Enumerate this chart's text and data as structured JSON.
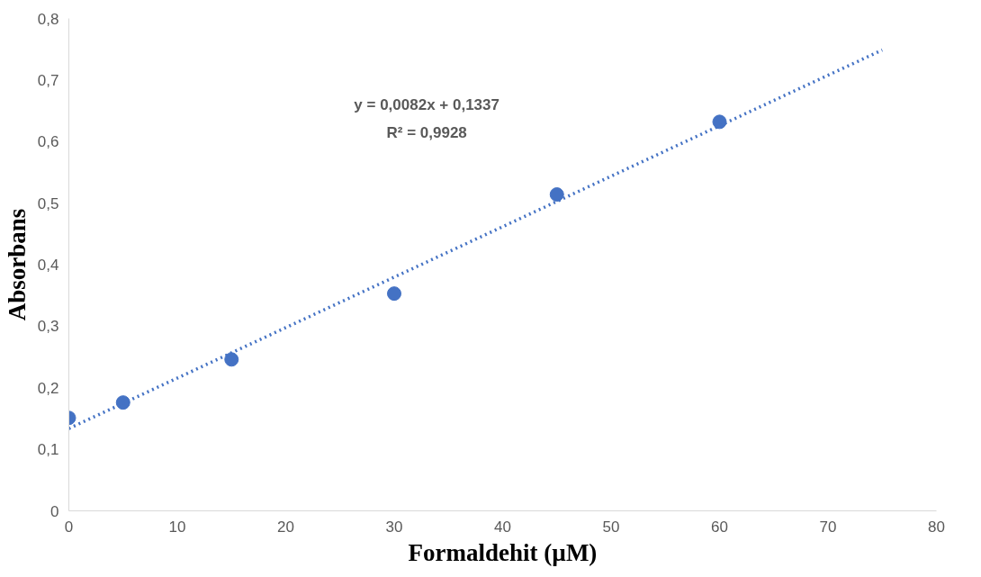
{
  "chart_data": {
    "type": "scatter",
    "xlabel": "Formaldehit (µM)",
    "ylabel": "Absorbans",
    "annotations": [
      "y = 0,0082x + 0,1337",
      "R² = 0,9928"
    ],
    "xlim": [
      0,
      80
    ],
    "xticks": [
      0,
      10,
      20,
      30,
      40,
      50,
      60,
      70,
      80
    ],
    "ylim": [
      0,
      0.8
    ],
    "yticks": [
      {
        "value": 0,
        "label": "0"
      },
      {
        "value": 0.1,
        "label": "0,1"
      },
      {
        "value": 0.2,
        "label": "0,2"
      },
      {
        "value": 0.3,
        "label": "0,3"
      },
      {
        "value": 0.4,
        "label": "0,4"
      },
      {
        "value": 0.5,
        "label": "0,5"
      },
      {
        "value": 0.6,
        "label": "0,6"
      },
      {
        "value": 0.7,
        "label": "0,7"
      },
      {
        "value": 0.8,
        "label": "0,8"
      }
    ],
    "grid": false,
    "series": [
      {
        "color": "#4472c4",
        "marker": "circle",
        "x": [
          0,
          5,
          15,
          30,
          45,
          60
        ],
        "values": [
          0.151,
          0.176,
          0.246,
          0.353,
          0.514,
          0.632
        ]
      },
      {
        "type": "line",
        "color": "#4472c4",
        "marker": "none",
        "line_style": "dotted",
        "x": [
          0,
          75
        ],
        "values": [
          0.1337,
          0.7487
        ]
      }
    ]
  }
}
